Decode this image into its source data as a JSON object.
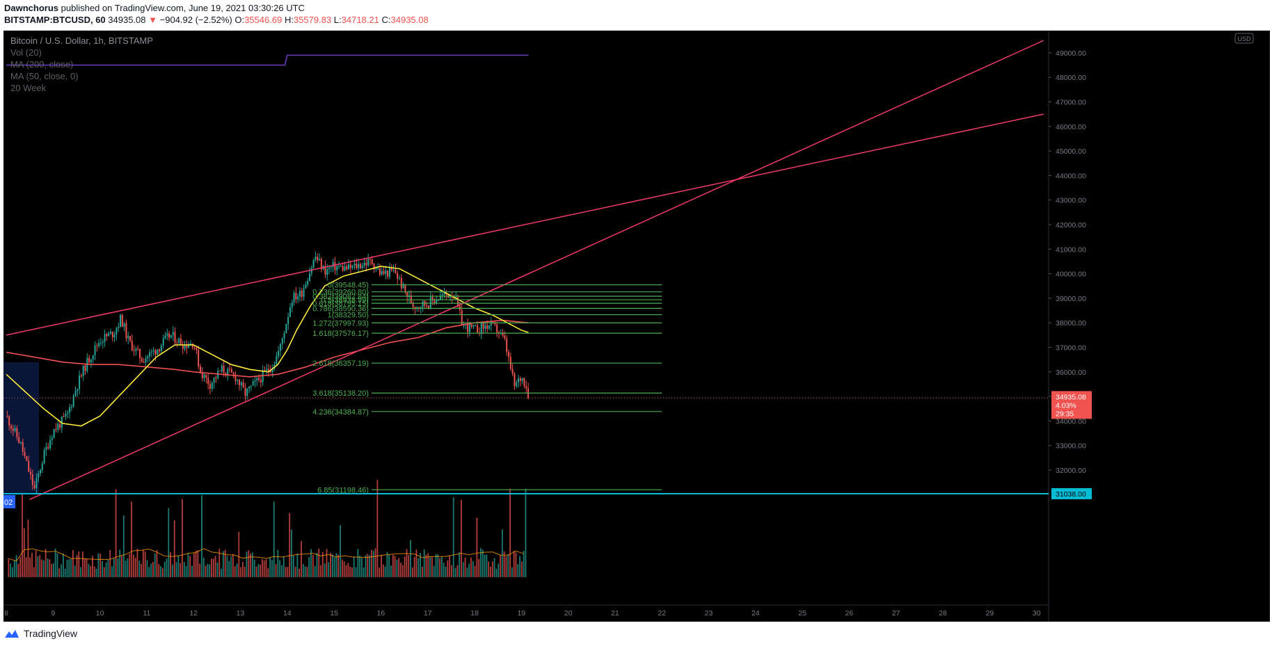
{
  "header": {
    "author": "Dawnchorus",
    "published_text": "published on TradingView.com, June 19, 2021 03:30:26 UTC",
    "symbol": "BITSTAMP:BTCUSD, 60",
    "last": "34935.08",
    "change": "−904.92 (−2.52%)",
    "o_label": "O:",
    "o": "35546.69",
    "h_label": "H:",
    "h": "35579.83",
    "l_label": "L:",
    "l": "34718.21",
    "c_label": "C:",
    "c": "34935.08"
  },
  "legend": {
    "title": "Bitcoin / U.S. Dollar, 1h, BITSTAMP",
    "indicators": [
      "Vol (20)",
      "MA (200, close)",
      "MA (50, close, 0)",
      "20 Week"
    ]
  },
  "footer": {
    "brand": "TradingView"
  },
  "colors": {
    "background": "#000000",
    "up": "#26a69a",
    "down": "#ef5350",
    "trendline": "#f23a6a",
    "ma50": "#ffeb3b",
    "ma200": "#f0504f",
    "fib": "#4caf50",
    "support": "#00bcd4",
    "twenty_week": "#673ab7",
    "vol_ma": "#ff9800"
  },
  "chart_data": {
    "type": "candlestick",
    "currency_badge": "USD",
    "y_range": [
      30500,
      49700
    ],
    "x_range": [
      8,
      30.1
    ],
    "y_ticks": [
      "32000.00",
      "33000.00",
      "34000.00",
      "35000.00",
      "36000.00",
      "37000.00",
      "38000.00",
      "39000.00",
      "40000.00",
      "41000.00",
      "42000.00",
      "43000.00",
      "44000.00",
      "45000.00",
      "46000.00",
      "47000.00",
      "48000.00",
      "49000.00"
    ],
    "x_ticks": [
      "8",
      "9",
      "10",
      "11",
      "12",
      "13",
      "14",
      "15",
      "16",
      "17",
      "18",
      "19",
      "20",
      "21",
      "22",
      "23",
      "24",
      "25",
      "26",
      "27",
      "28",
      "29",
      "30"
    ],
    "price_path": [
      [
        8,
        34200
      ],
      [
        8.3,
        33100
      ],
      [
        8.6,
        31200
      ],
      [
        8.8,
        32600
      ],
      [
        9.0,
        33600
      ],
      [
        9.3,
        34200
      ],
      [
        9.5,
        35400
      ],
      [
        9.7,
        36300
      ],
      [
        10.0,
        37300
      ],
      [
        10.3,
        37600
      ],
      [
        10.45,
        38200
      ],
      [
        10.6,
        37300
      ],
      [
        10.9,
        36500
      ],
      [
        11.2,
        36900
      ],
      [
        11.5,
        37500
      ],
      [
        11.8,
        37100
      ],
      [
        12.0,
        37200
      ],
      [
        12.15,
        36000
      ],
      [
        12.35,
        35500
      ],
      [
        12.6,
        36100
      ],
      [
        12.9,
        35800
      ],
      [
        13.1,
        35100
      ],
      [
        13.4,
        35700
      ],
      [
        13.7,
        36300
      ],
      [
        13.85,
        37000
      ],
      [
        14.0,
        38200
      ],
      [
        14.1,
        39000
      ],
      [
        14.3,
        39200
      ],
      [
        14.5,
        40200
      ],
      [
        14.6,
        40700
      ],
      [
        14.8,
        40100
      ],
      [
        15.0,
        40300
      ],
      [
        15.3,
        40200
      ],
      [
        15.6,
        40400
      ],
      [
        15.8,
        40500
      ],
      [
        16.0,
        40000
      ],
      [
        16.3,
        40100
      ],
      [
        16.5,
        39300
      ],
      [
        16.7,
        38700
      ],
      [
        17.0,
        38800
      ],
      [
        17.3,
        39100
      ],
      [
        17.55,
        39200
      ],
      [
        17.75,
        37900
      ],
      [
        18.0,
        37700
      ],
      [
        18.3,
        37900
      ],
      [
        18.5,
        37700
      ],
      [
        18.65,
        37200
      ],
      [
        18.75,
        36300
      ],
      [
        18.85,
        35400
      ],
      [
        19.0,
        35800
      ],
      [
        19.1,
        35500
      ],
      [
        19.15,
        34935
      ]
    ],
    "ma50_path": [
      [
        8,
        35900
      ],
      [
        8.4,
        35200
      ],
      [
        8.8,
        34500
      ],
      [
        9.2,
        33900
      ],
      [
        9.6,
        33800
      ],
      [
        10.0,
        34200
      ],
      [
        10.4,
        35000
      ],
      [
        10.8,
        35800
      ],
      [
        11.2,
        36600
      ],
      [
        11.6,
        37100
      ],
      [
        12.0,
        37100
      ],
      [
        12.4,
        36700
      ],
      [
        12.8,
        36300
      ],
      [
        13.2,
        36100
      ],
      [
        13.6,
        36000
      ],
      [
        13.8,
        36300
      ],
      [
        14.0,
        36900
      ],
      [
        14.2,
        37700
      ],
      [
        14.5,
        38700
      ],
      [
        14.8,
        39500
      ],
      [
        15.2,
        39900
      ],
      [
        15.6,
        40100
      ],
      [
        16.0,
        40300
      ],
      [
        16.4,
        40200
      ],
      [
        16.8,
        39800
      ],
      [
        17.2,
        39400
      ],
      [
        17.6,
        39000
      ],
      [
        18.0,
        38600
      ],
      [
        18.4,
        38300
      ],
      [
        18.7,
        38000
      ],
      [
        19.0,
        37700
      ],
      [
        19.15,
        37600
      ]
    ],
    "ma200_path": [
      [
        8,
        36800
      ],
      [
        8.6,
        36600
      ],
      [
        9.2,
        36400
      ],
      [
        9.8,
        36300
      ],
      [
        10.4,
        36300
      ],
      [
        11.0,
        36200
      ],
      [
        11.6,
        36100
      ],
      [
        12.0,
        36000
      ],
      [
        12.6,
        35900
      ],
      [
        13.2,
        35800
      ],
      [
        13.8,
        35900
      ],
      [
        14.4,
        36200
      ],
      [
        15.0,
        36600
      ],
      [
        15.6,
        36900
      ],
      [
        16.2,
        37200
      ],
      [
        16.8,
        37400
      ],
      [
        17.4,
        37800
      ],
      [
        18.0,
        38000
      ],
      [
        18.6,
        38100
      ],
      [
        19.15,
        38000
      ]
    ],
    "twenty_week_path": [
      [
        8,
        48500
      ],
      [
        13.95,
        48500
      ],
      [
        14.0,
        48900
      ],
      [
        19.15,
        48900
      ]
    ],
    "trendlines": [
      {
        "from": [
          8,
          37500
        ],
        "to": [
          30.15,
          46500
        ]
      },
      {
        "from": [
          8.5,
          30800
        ],
        "to": [
          30.15,
          49500
        ]
      }
    ],
    "support_level": {
      "price": 31038.0,
      "label": "31038.00"
    },
    "current_price": {
      "price": 34935.08,
      "label": "34935.08",
      "pct": "4.03%",
      "countdown": "29:35"
    },
    "fib_levels": [
      {
        "label": "0(39548.45)",
        "price": 39548.45
      },
      {
        "label": "0.236(39260.80)",
        "price": 39260.8
      },
      {
        "label": "0.382(39082.84)",
        "price": 39082.84
      },
      {
        "label": "0.5(38938.99)",
        "price": 38938.99
      },
      {
        "label": "0.618(38795.15)",
        "price": 38795.15
      },
      {
        "label": "0.786(38590.36)",
        "price": 38590.36
      },
      {
        "label": "1(38329.50)",
        "price": 38329.5
      },
      {
        "label": "1.272(37997.93)",
        "price": 37997.93
      },
      {
        "label": "1.618(37576.17)",
        "price": 37576.17
      },
      {
        "label": "2.618(36357.19)",
        "price": 36357.19
      },
      {
        "label": "3.618(35138.20)",
        "price": 35138.2
      },
      {
        "label": "4.236(34384.87)",
        "price": 34384.87
      },
      {
        "label": "6.85(31198.46)",
        "price": 31198.46
      }
    ],
    "fib_x_range": [
      15.8,
      22.0
    ],
    "highlight_box": {
      "x_range": [
        8,
        8.7
      ],
      "price_range": [
        31000,
        36400
      ],
      "label": "02"
    }
  }
}
